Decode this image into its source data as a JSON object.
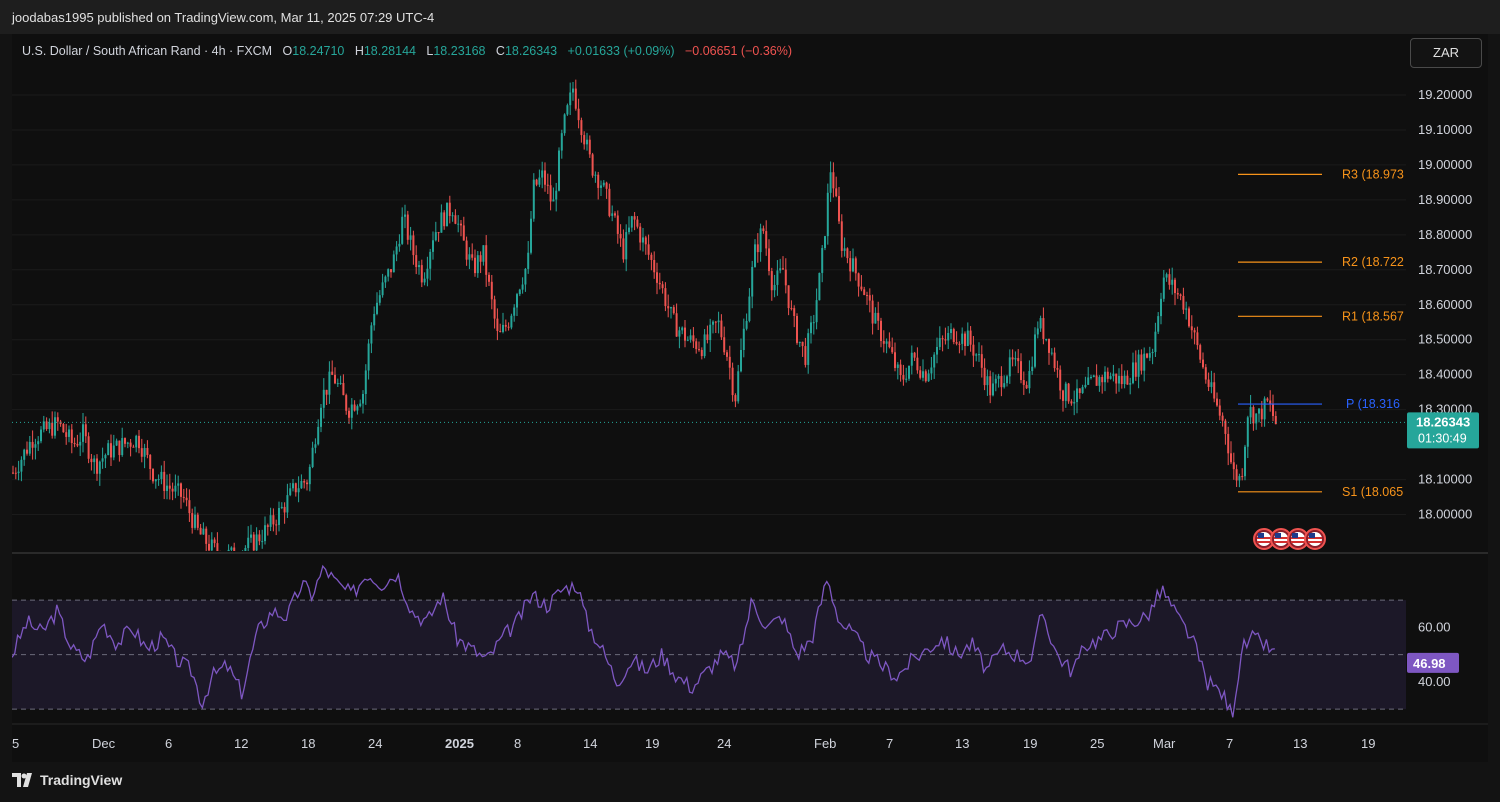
{
  "header": {
    "publish_line": "joodabas1995 published on TradingView.com, Mar 11, 2025 07:29 UTC-4"
  },
  "legend": {
    "symbol": "U.S. Dollar / South African Rand · 4h · FXCM",
    "o_label": "O",
    "o_value": "18.24710",
    "h_label": "H",
    "h_value": "18.28144",
    "l_label": "L",
    "l_value": "18.23168",
    "c_label": "C",
    "c_value": "18.26343",
    "change": "+0.01633 (+0.09%)",
    "change2": "−0.06651 (−0.36%)"
  },
  "currency_button": "ZAR",
  "footer": {
    "brand": "TradingView"
  },
  "colors": {
    "up": "#26a69a",
    "down": "#ef5350",
    "rsi": "#7e57c2",
    "pivot_r": "#f7931a",
    "pivot_p": "#2962ff"
  },
  "icons": [
    "us-flag-event-icon",
    "us-flag-event-icon",
    "us-flag-event-icon",
    "us-flag-event-icon"
  ],
  "chart_data": {
    "type": "candlestick",
    "price_axis": {
      "ticks": [
        "19.20000",
        "19.10000",
        "19.00000",
        "18.90000",
        "18.80000",
        "18.70000",
        "18.60000",
        "18.50000",
        "18.40000",
        "18.30000",
        "18.10000",
        "18.00000"
      ],
      "range": [
        17.93,
        19.26
      ]
    },
    "x_ticks": [
      {
        "label": "5",
        "bold": false
      },
      {
        "label": "Dec",
        "bold": false
      },
      {
        "label": "6",
        "bold": false
      },
      {
        "label": "12",
        "bold": false
      },
      {
        "label": "18",
        "bold": false
      },
      {
        "label": "24",
        "bold": false
      },
      {
        "label": "2025",
        "bold": true
      },
      {
        "label": "8",
        "bold": false
      },
      {
        "label": "14",
        "bold": false
      },
      {
        "label": "19",
        "bold": false
      },
      {
        "label": "24",
        "bold": false
      },
      {
        "label": "Feb",
        "bold": false
      },
      {
        "label": "7",
        "bold": false
      },
      {
        "label": "13",
        "bold": false
      },
      {
        "label": "19",
        "bold": false
      },
      {
        "label": "25",
        "bold": false
      },
      {
        "label": "Mar",
        "bold": false
      },
      {
        "label": "7",
        "bold": false
      },
      {
        "label": "13",
        "bold": false
      },
      {
        "label": "19",
        "bold": false
      }
    ],
    "price_path": [
      [
        0,
        18.12
      ],
      [
        20,
        18.22
      ],
      [
        45,
        18.26
      ],
      [
        60,
        18.2
      ],
      [
        70,
        18.23
      ],
      [
        82,
        18.14
      ],
      [
        95,
        18.18
      ],
      [
        110,
        18.2
      ],
      [
        125,
        18.22
      ],
      [
        140,
        18.12
      ],
      [
        155,
        18.08
      ],
      [
        170,
        18.05
      ],
      [
        185,
        17.95
      ],
      [
        200,
        17.9
      ],
      [
        220,
        17.88
      ],
      [
        240,
        17.92
      ],
      [
        255,
        17.96
      ],
      [
        270,
        18.02
      ],
      [
        283,
        18.08
      ],
      [
        295,
        18.1
      ],
      [
        308,
        18.33
      ],
      [
        320,
        18.4
      ],
      [
        335,
        18.3
      ],
      [
        350,
        18.35
      ],
      [
        360,
        18.58
      ],
      [
        370,
        18.65
      ],
      [
        380,
        18.72
      ],
      [
        390,
        18.85
      ],
      [
        400,
        18.75
      ],
      [
        410,
        18.68
      ],
      [
        420,
        18.8
      ],
      [
        430,
        18.85
      ],
      [
        440,
        18.88
      ],
      [
        450,
        18.78
      ],
      [
        460,
        18.7
      ],
      [
        470,
        18.75
      ],
      [
        485,
        18.5
      ],
      [
        495,
        18.55
      ],
      [
        505,
        18.65
      ],
      [
        515,
        18.72
      ],
      [
        520,
        18.93
      ],
      [
        530,
        18.97
      ],
      [
        540,
        18.88
      ],
      [
        550,
        19.1
      ],
      [
        560,
        19.22
      ],
      [
        568,
        19.12
      ],
      [
        578,
        19.0
      ],
      [
        588,
        18.95
      ],
      [
        600,
        18.85
      ],
      [
        610,
        18.75
      ],
      [
        620,
        18.85
      ],
      [
        630,
        18.78
      ],
      [
        645,
        18.68
      ],
      [
        660,
        18.55
      ],
      [
        675,
        18.5
      ],
      [
        690,
        18.48
      ],
      [
        705,
        18.55
      ],
      [
        715,
        18.45
      ],
      [
        722,
        18.33
      ],
      [
        732,
        18.55
      ],
      [
        742,
        18.75
      ],
      [
        750,
        18.82
      ],
      [
        760,
        18.65
      ],
      [
        770,
        18.7
      ],
      [
        780,
        18.55
      ],
      [
        792,
        18.45
      ],
      [
        800,
        18.55
      ],
      [
        808,
        18.7
      ],
      [
        818,
        19.0
      ],
      [
        828,
        18.78
      ],
      [
        838,
        18.72
      ],
      [
        850,
        18.65
      ],
      [
        862,
        18.55
      ],
      [
        875,
        18.48
      ],
      [
        888,
        18.38
      ],
      [
        900,
        18.45
      ],
      [
        912,
        18.4
      ],
      [
        925,
        18.48
      ],
      [
        940,
        18.52
      ],
      [
        955,
        18.5
      ],
      [
        965,
        18.45
      ],
      [
        978,
        18.35
      ],
      [
        990,
        18.4
      ],
      [
        1000,
        18.43
      ],
      [
        1015,
        18.38
      ],
      [
        1025,
        18.55
      ],
      [
        1035,
        18.5
      ],
      [
        1050,
        18.35
      ],
      [
        1065,
        18.33
      ],
      [
        1080,
        18.38
      ],
      [
        1095,
        18.4
      ],
      [
        1110,
        18.38
      ],
      [
        1125,
        18.43
      ],
      [
        1140,
        18.48
      ],
      [
        1150,
        18.68
      ],
      [
        1160,
        18.65
      ],
      [
        1172,
        18.6
      ],
      [
        1182,
        18.5
      ],
      [
        1192,
        18.4
      ],
      [
        1202,
        18.32
      ],
      [
        1212,
        18.25
      ],
      [
        1220,
        18.12
      ],
      [
        1228,
        18.1
      ],
      [
        1235,
        18.3
      ],
      [
        1245,
        18.28
      ],
      [
        1255,
        18.32
      ],
      [
        1263,
        18.26
      ]
    ],
    "pivots": [
      {
        "label": "R3 (18.973",
        "value": 18.973,
        "color": "#f7931a"
      },
      {
        "label": "R2 (18.722",
        "value": 18.722,
        "color": "#f7931a"
      },
      {
        "label": "R1 (18.567",
        "value": 18.567,
        "color": "#f7931a"
      },
      {
        "label": "P (18.316",
        "value": 18.316,
        "color": "#2962ff"
      },
      {
        "label": "S1 (18.065",
        "value": 18.065,
        "color": "#f7931a"
      }
    ],
    "last_price": {
      "value": "18.26343",
      "timer": "01:30:49",
      "numeric": 18.26343
    },
    "rsi": {
      "ticks": [
        "60.00",
        "40.00"
      ],
      "range": [
        26,
        84
      ],
      "upper": 70,
      "middle": 50,
      "lower": 30,
      "current": "46.98",
      "current_value": 46.98,
      "path": [
        [
          0,
          50
        ],
        [
          15,
          62
        ],
        [
          30,
          58
        ],
        [
          45,
          66
        ],
        [
          60,
          52
        ],
        [
          75,
          48
        ],
        [
          90,
          62
        ],
        [
          105,
          54
        ],
        [
          120,
          60
        ],
        [
          135,
          52
        ],
        [
          150,
          56
        ],
        [
          165,
          48
        ],
        [
          180,
          44
        ],
        [
          190,
          32
        ],
        [
          200,
          42
        ],
        [
          215,
          46
        ],
        [
          230,
          36
        ],
        [
          245,
          58
        ],
        [
          260,
          66
        ],
        [
          275,
          64
        ],
        [
          290,
          76
        ],
        [
          300,
          72
        ],
        [
          312,
          82
        ],
        [
          325,
          76
        ],
        [
          340,
          72
        ],
        [
          355,
          80
        ],
        [
          370,
          76
        ],
        [
          385,
          80
        ],
        [
          400,
          66
        ],
        [
          415,
          62
        ],
        [
          430,
          72
        ],
        [
          445,
          56
        ],
        [
          460,
          52
        ],
        [
          475,
          48
        ],
        [
          490,
          56
        ],
        [
          505,
          62
        ],
        [
          520,
          72
        ],
        [
          535,
          68
        ],
        [
          550,
          74
        ],
        [
          565,
          76
        ],
        [
          575,
          62
        ],
        [
          590,
          52
        ],
        [
          605,
          40
        ],
        [
          620,
          48
        ],
        [
          635,
          44
        ],
        [
          650,
          50
        ],
        [
          665,
          42
        ],
        [
          680,
          38
        ],
        [
          695,
          44
        ],
        [
          710,
          50
        ],
        [
          725,
          46
        ],
        [
          740,
          70
        ],
        [
          755,
          60
        ],
        [
          770,
          64
        ],
        [
          785,
          50
        ],
        [
          800,
          56
        ],
        [
          815,
          78
        ],
        [
          828,
          62
        ],
        [
          840,
          58
        ],
        [
          855,
          50
        ],
        [
          870,
          46
        ],
        [
          885,
          42
        ],
        [
          900,
          48
        ],
        [
          915,
          52
        ],
        [
          930,
          56
        ],
        [
          945,
          50
        ],
        [
          960,
          54
        ],
        [
          975,
          44
        ],
        [
          990,
          52
        ],
        [
          1005,
          50
        ],
        [
          1020,
          48
        ],
        [
          1030,
          66
        ],
        [
          1045,
          50
        ],
        [
          1060,
          44
        ],
        [
          1075,
          54
        ],
        [
          1090,
          56
        ],
        [
          1105,
          60
        ],
        [
          1120,
          62
        ],
        [
          1135,
          64
        ],
        [
          1150,
          74
        ],
        [
          1165,
          64
        ],
        [
          1180,
          56
        ],
        [
          1195,
          40
        ],
        [
          1210,
          36
        ],
        [
          1220,
          28
        ],
        [
          1230,
          52
        ],
        [
          1240,
          56
        ],
        [
          1252,
          54
        ],
        [
          1263,
          50
        ]
      ]
    }
  }
}
